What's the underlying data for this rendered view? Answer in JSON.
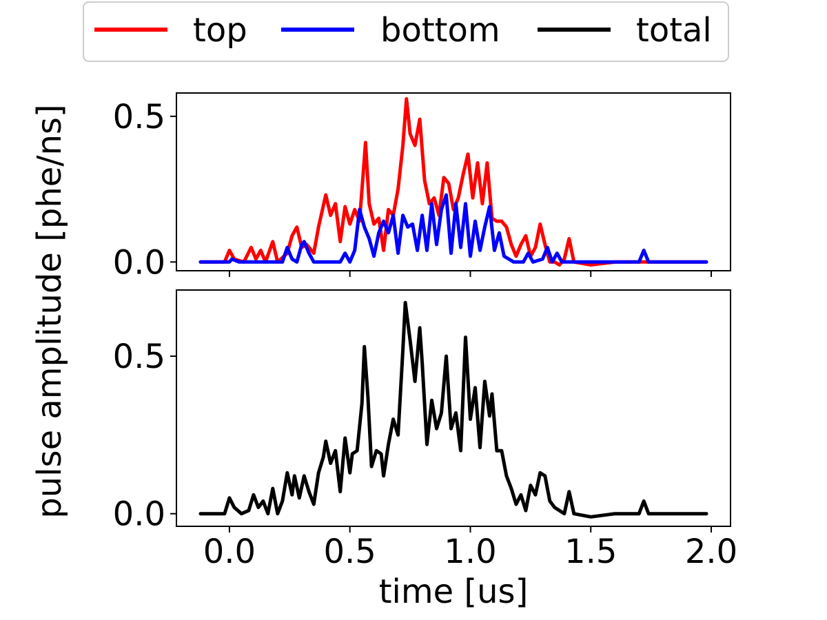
{
  "chart_data": {
    "type": "line",
    "xlabel": "time [us]",
    "ylabel": "pulse amplitude [phe/ns]",
    "legend": {
      "placement": "top-center",
      "entries": [
        {
          "label": "top",
          "color": "#ff0000"
        },
        {
          "label": "bottom",
          "color": "#0000ff"
        },
        {
          "label": "total",
          "color": "#000000"
        }
      ]
    },
    "xlim": [
      -0.22,
      2.08
    ],
    "xticks": [
      {
        "v": 0.0,
        "label": "0.0"
      },
      {
        "v": 0.5,
        "label": "0.5"
      },
      {
        "v": 1.0,
        "label": "1.0"
      },
      {
        "v": 1.5,
        "label": "1.5"
      },
      {
        "v": 2.0,
        "label": "2.0"
      }
    ],
    "grid": false,
    "panels": [
      {
        "ylim": [
          -0.03,
          0.58
        ],
        "yticks": [
          {
            "v": 0.0,
            "label": "0.0"
          },
          {
            "v": 0.5,
            "label": "0.5"
          }
        ],
        "show_xtick_labels": false,
        "series": [
          {
            "name": "top",
            "color": "#ff0000",
            "points": [
              [
                -0.12,
                0.0
              ],
              [
                -0.02,
                0.0
              ],
              [
                0.0,
                0.04
              ],
              [
                0.02,
                0.01
              ],
              [
                0.06,
                0.0
              ],
              [
                0.09,
                0.05
              ],
              [
                0.11,
                0.01
              ],
              [
                0.13,
                0.04
              ],
              [
                0.15,
                0.0
              ],
              [
                0.18,
                0.07
              ],
              [
                0.2,
                0.0
              ],
              [
                0.24,
                0.03
              ],
              [
                0.26,
                0.09
              ],
              [
                0.28,
                0.12
              ],
              [
                0.3,
                0.05
              ],
              [
                0.32,
                0.06
              ],
              [
                0.35,
                0.03
              ],
              [
                0.37,
                0.12
              ],
              [
                0.4,
                0.23
              ],
              [
                0.42,
                0.16
              ],
              [
                0.44,
                0.2
              ],
              [
                0.46,
                0.07
              ],
              [
                0.48,
                0.19
              ],
              [
                0.5,
                0.13
              ],
              [
                0.52,
                0.18
              ],
              [
                0.54,
                0.14
              ],
              [
                0.555,
                0.3
              ],
              [
                0.565,
                0.41
              ],
              [
                0.58,
                0.2
              ],
              [
                0.6,
                0.13
              ],
              [
                0.62,
                0.15
              ],
              [
                0.64,
                0.04
              ],
              [
                0.66,
                0.18
              ],
              [
                0.68,
                0.16
              ],
              [
                0.7,
                0.25
              ],
              [
                0.72,
                0.4
              ],
              [
                0.735,
                0.56
              ],
              [
                0.75,
                0.44
              ],
              [
                0.77,
                0.4
              ],
              [
                0.79,
                0.49
              ],
              [
                0.81,
                0.28
              ],
              [
                0.83,
                0.2
              ],
              [
                0.85,
                0.22
              ],
              [
                0.87,
                0.16
              ],
              [
                0.89,
                0.29
              ],
              [
                0.91,
                0.27
              ],
              [
                0.93,
                0.18
              ],
              [
                0.95,
                0.22
              ],
              [
                0.97,
                0.3
              ],
              [
                0.99,
                0.37
              ],
              [
                1.01,
                0.22
              ],
              [
                1.03,
                0.34
              ],
              [
                1.05,
                0.2
              ],
              [
                1.07,
                0.34
              ],
              [
                1.09,
                0.15
              ],
              [
                1.11,
                0.14
              ],
              [
                1.13,
                0.14
              ],
              [
                1.15,
                0.12
              ],
              [
                1.17,
                0.06
              ],
              [
                1.19,
                0.02
              ],
              [
                1.21,
                0.06
              ],
              [
                1.23,
                0.09
              ],
              [
                1.25,
                0.02
              ],
              [
                1.27,
                0.05
              ],
              [
                1.29,
                0.13
              ],
              [
                1.31,
                0.06
              ],
              [
                1.33,
                0.0
              ],
              [
                1.35,
                0.0
              ],
              [
                1.37,
                -0.01
              ],
              [
                1.39,
                0.01
              ],
              [
                1.41,
                0.08
              ],
              [
                1.43,
                0.0
              ],
              [
                1.5,
                -0.01
              ],
              [
                1.6,
                0.0
              ],
              [
                1.7,
                0.0
              ],
              [
                1.8,
                0.0
              ],
              [
                1.98,
                0.0
              ]
            ]
          },
          {
            "name": "bottom",
            "color": "#0000ff",
            "points": [
              [
                -0.12,
                0.0
              ],
              [
                -0.02,
                0.0
              ],
              [
                0.0,
                0.0
              ],
              [
                0.01,
                0.01
              ],
              [
                0.04,
                0.0
              ],
              [
                0.1,
                0.0
              ],
              [
                0.2,
                0.0
              ],
              [
                0.22,
                0.0
              ],
              [
                0.24,
                0.05
              ],
              [
                0.26,
                0.01
              ],
              [
                0.28,
                0.0
              ],
              [
                0.3,
                0.06
              ],
              [
                0.31,
                0.07
              ],
              [
                0.33,
                0.03
              ],
              [
                0.35,
                0.0
              ],
              [
                0.4,
                0.0
              ],
              [
                0.46,
                0.0
              ],
              [
                0.48,
                0.03
              ],
              [
                0.5,
                0.0
              ],
              [
                0.52,
                0.04
              ],
              [
                0.54,
                0.18
              ],
              [
                0.56,
                0.12
              ],
              [
                0.58,
                0.08
              ],
              [
                0.6,
                0.02
              ],
              [
                0.62,
                0.1
              ],
              [
                0.64,
                0.14
              ],
              [
                0.66,
                0.1
              ],
              [
                0.68,
                0.16
              ],
              [
                0.7,
                0.03
              ],
              [
                0.72,
                0.16
              ],
              [
                0.74,
                0.12
              ],
              [
                0.76,
                0.13
              ],
              [
                0.78,
                0.04
              ],
              [
                0.8,
                0.16
              ],
              [
                0.82,
                0.04
              ],
              [
                0.84,
                0.2
              ],
              [
                0.86,
                0.06
              ],
              [
                0.88,
                0.18
              ],
              [
                0.9,
                0.23
              ],
              [
                0.92,
                0.03
              ],
              [
                0.94,
                0.2
              ],
              [
                0.96,
                0.05
              ],
              [
                0.98,
                0.2
              ],
              [
                1.0,
                0.02
              ],
              [
                1.02,
                0.14
              ],
              [
                1.04,
                0.04
              ],
              [
                1.06,
                0.12
              ],
              [
                1.08,
                0.19
              ],
              [
                1.1,
                0.04
              ],
              [
                1.12,
                0.1
              ],
              [
                1.14,
                0.02
              ],
              [
                1.18,
                0.0
              ],
              [
                1.22,
                0.0
              ],
              [
                1.24,
                0.03
              ],
              [
                1.26,
                0.0
              ],
              [
                1.3,
                0.01
              ],
              [
                1.32,
                0.05
              ],
              [
                1.34,
                0.0
              ],
              [
                1.36,
                0.03
              ],
              [
                1.38,
                0.0
              ],
              [
                1.6,
                0.0
              ],
              [
                1.7,
                0.0
              ],
              [
                1.72,
                0.04
              ],
              [
                1.74,
                0.0
              ],
              [
                1.98,
                0.0
              ]
            ]
          }
        ]
      },
      {
        "ylim": [
          -0.04,
          0.71
        ],
        "yticks": [
          {
            "v": 0.0,
            "label": "0.0"
          },
          {
            "v": 0.5,
            "label": "0.5"
          }
        ],
        "show_xtick_labels": true,
        "series": [
          {
            "name": "total",
            "color": "#000000",
            "points": [
              [
                -0.12,
                0.0
              ],
              [
                -0.02,
                0.0
              ],
              [
                0.0,
                0.05
              ],
              [
                0.02,
                0.02
              ],
              [
                0.05,
                0.0
              ],
              [
                0.08,
                0.01
              ],
              [
                0.1,
                0.06
              ],
              [
                0.12,
                0.02
              ],
              [
                0.14,
                0.04
              ],
              [
                0.16,
                0.0
              ],
              [
                0.18,
                0.08
              ],
              [
                0.2,
                0.0
              ],
              [
                0.22,
                0.04
              ],
              [
                0.24,
                0.13
              ],
              [
                0.26,
                0.06
              ],
              [
                0.27,
                0.12
              ],
              [
                0.29,
                0.05
              ],
              [
                0.31,
                0.12
              ],
              [
                0.33,
                0.07
              ],
              [
                0.35,
                0.03
              ],
              [
                0.37,
                0.13
              ],
              [
                0.39,
                0.18
              ],
              [
                0.4,
                0.23
              ],
              [
                0.42,
                0.16
              ],
              [
                0.44,
                0.2
              ],
              [
                0.46,
                0.07
              ],
              [
                0.48,
                0.24
              ],
              [
                0.5,
                0.13
              ],
              [
                0.51,
                0.19
              ],
              [
                0.53,
                0.2
              ],
              [
                0.55,
                0.35
              ],
              [
                0.56,
                0.53
              ],
              [
                0.575,
                0.37
              ],
              [
                0.59,
                0.15
              ],
              [
                0.61,
                0.2
              ],
              [
                0.63,
                0.19
              ],
              [
                0.64,
                0.12
              ],
              [
                0.66,
                0.22
              ],
              [
                0.68,
                0.3
              ],
              [
                0.7,
                0.25
              ],
              [
                0.72,
                0.52
              ],
              [
                0.73,
                0.67
              ],
              [
                0.75,
                0.55
              ],
              [
                0.77,
                0.42
              ],
              [
                0.79,
                0.59
              ],
              [
                0.8,
                0.48
              ],
              [
                0.82,
                0.22
              ],
              [
                0.84,
                0.36
              ],
              [
                0.86,
                0.27
              ],
              [
                0.88,
                0.32
              ],
              [
                0.9,
                0.5
              ],
              [
                0.92,
                0.27
              ],
              [
                0.94,
                0.32
              ],
              [
                0.96,
                0.2
              ],
              [
                0.98,
                0.56
              ],
              [
                1.0,
                0.3
              ],
              [
                1.02,
                0.4
              ],
              [
                1.04,
                0.21
              ],
              [
                1.06,
                0.42
              ],
              [
                1.08,
                0.31
              ],
              [
                1.09,
                0.38
              ],
              [
                1.11,
                0.2
              ],
              [
                1.13,
                0.2
              ],
              [
                1.15,
                0.12
              ],
              [
                1.17,
                0.08
              ],
              [
                1.19,
                0.03
              ],
              [
                1.21,
                0.06
              ],
              [
                1.23,
                0.01
              ],
              [
                1.25,
                0.09
              ],
              [
                1.27,
                0.06
              ],
              [
                1.29,
                0.13
              ],
              [
                1.31,
                0.12
              ],
              [
                1.33,
                0.04
              ],
              [
                1.35,
                0.02
              ],
              [
                1.37,
                0.01
              ],
              [
                1.39,
                0.0
              ],
              [
                1.41,
                0.07
              ],
              [
                1.43,
                0.0
              ],
              [
                1.5,
                -0.01
              ],
              [
                1.6,
                0.0
              ],
              [
                1.7,
                0.0
              ],
              [
                1.72,
                0.04
              ],
              [
                1.74,
                0.0
              ],
              [
                1.98,
                0.0
              ]
            ]
          }
        ]
      }
    ]
  }
}
